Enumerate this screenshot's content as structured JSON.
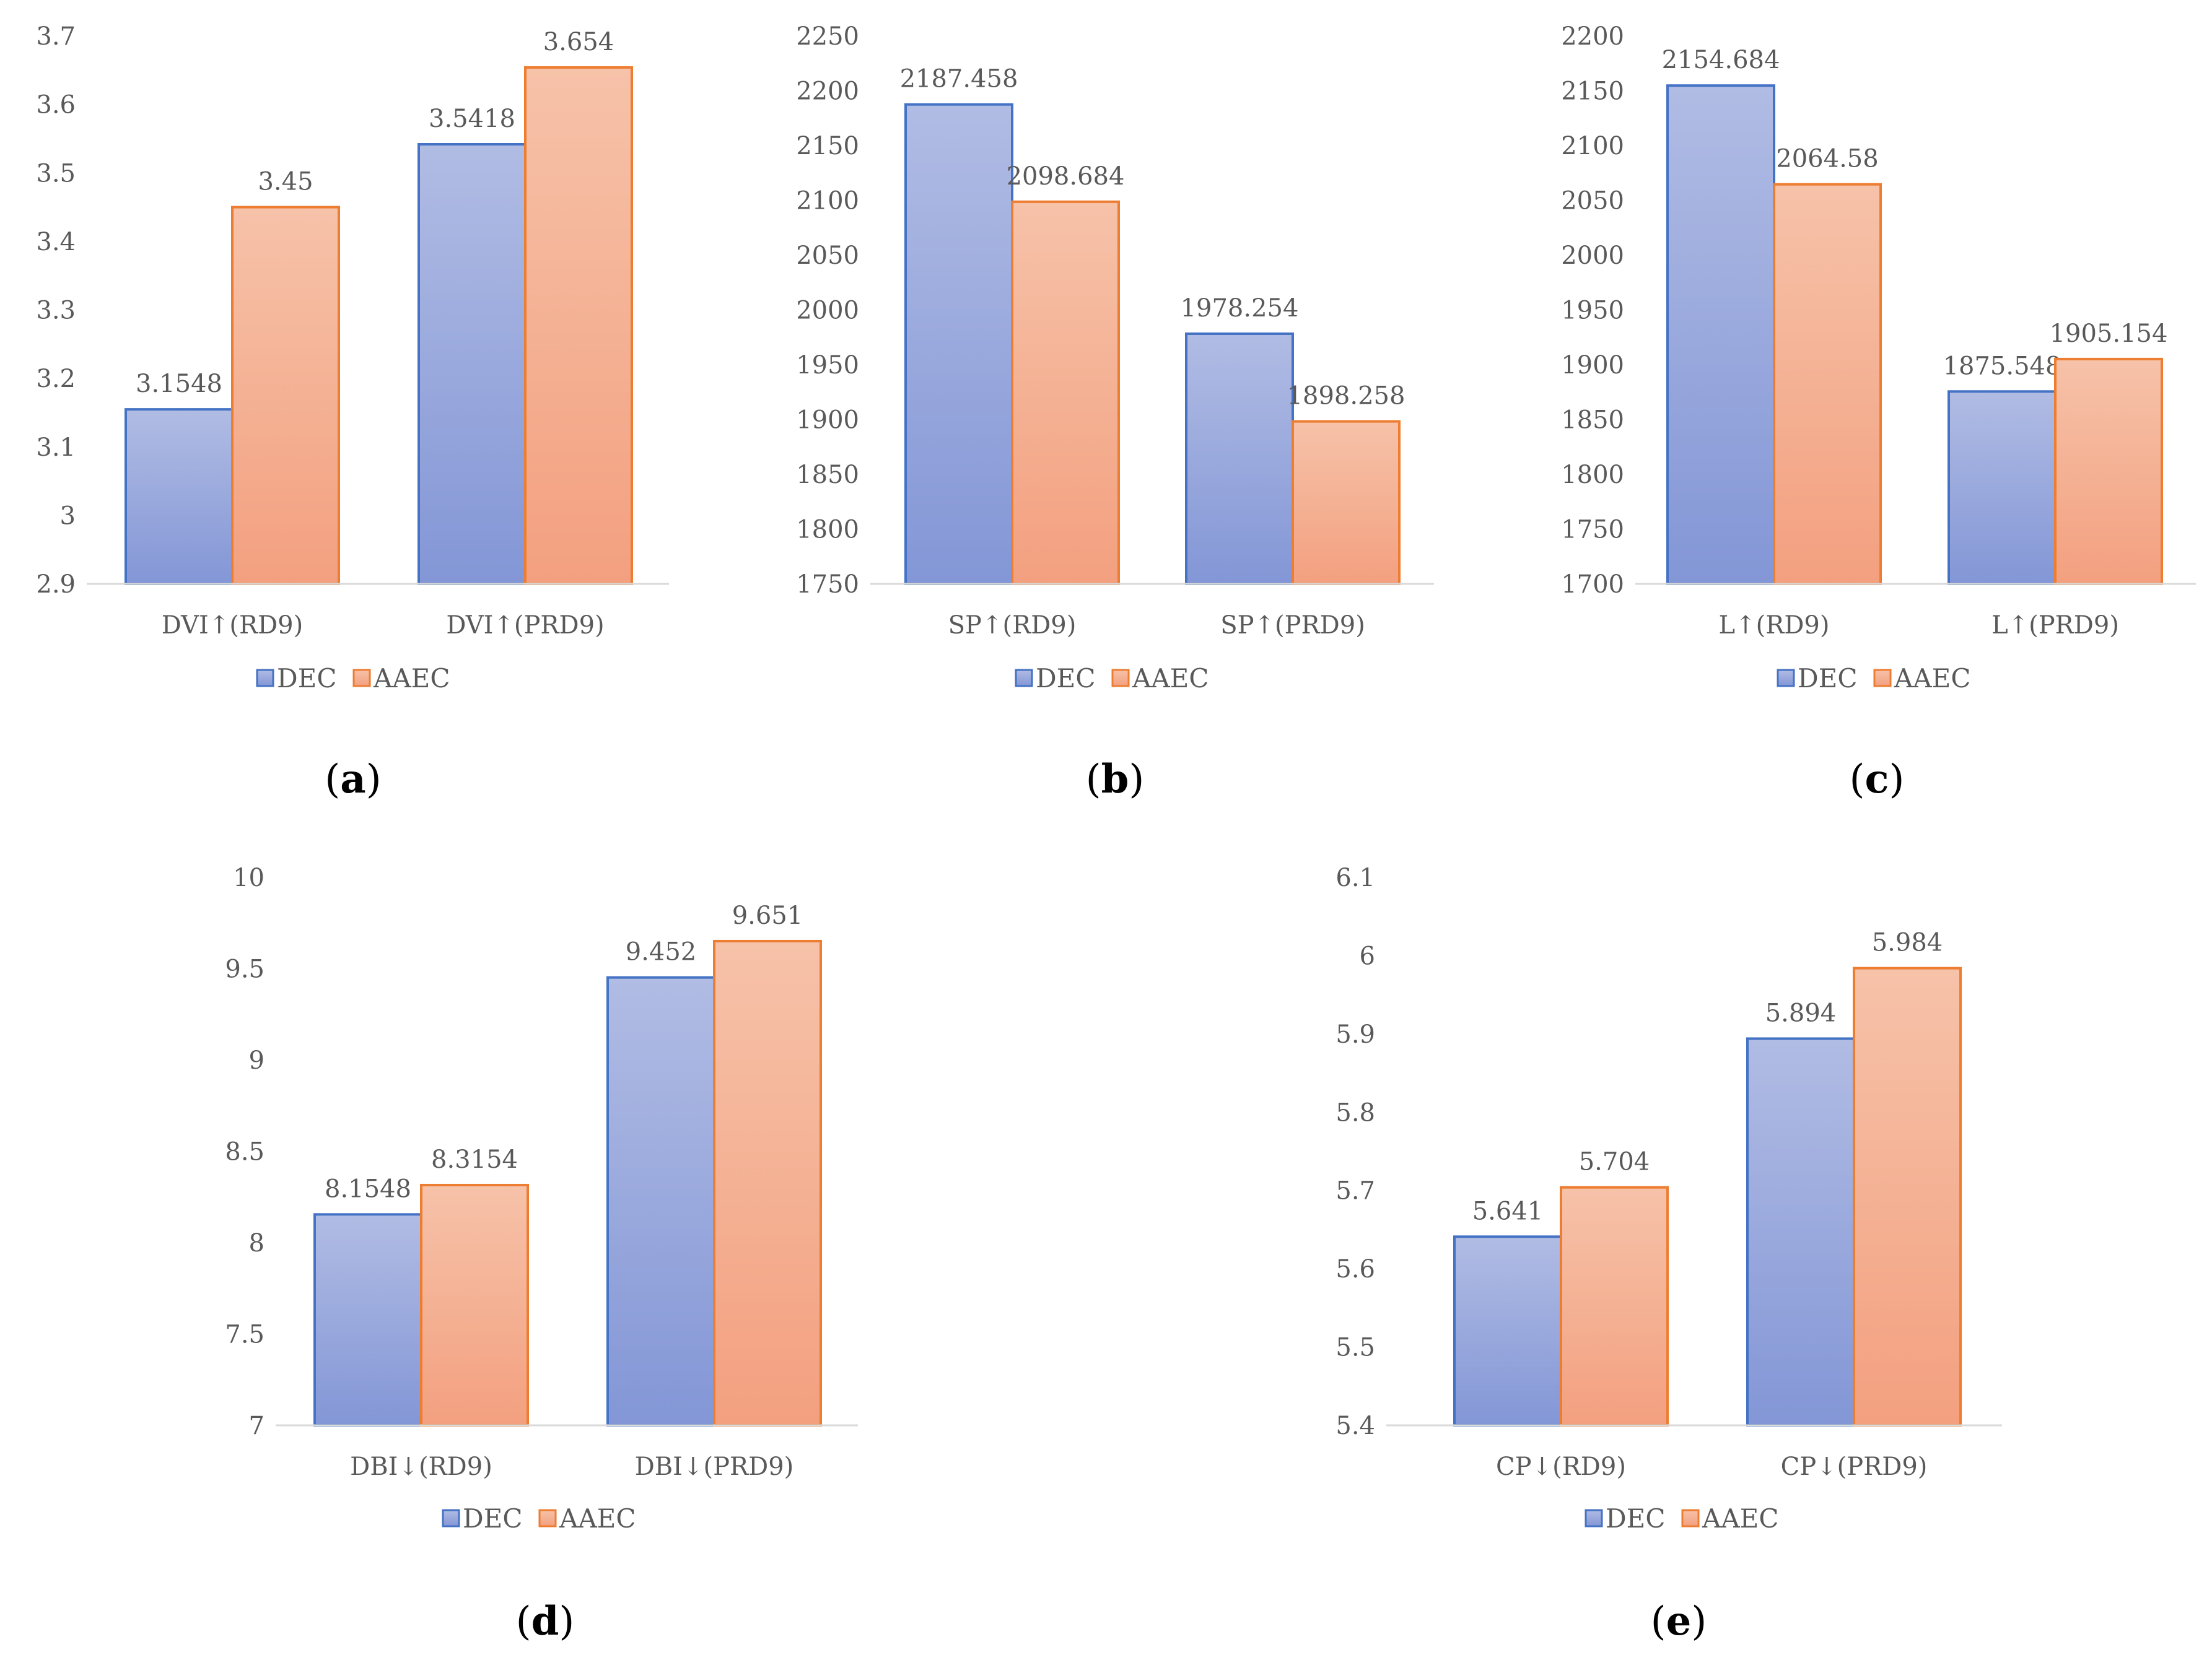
{
  "colors": {
    "dec_light": "#b1bce4",
    "dec_dark": "#8396d6",
    "dec_edge": "#4472c4",
    "aaec_light": "#f6c2a9",
    "aaec_dark": "#f3a07f",
    "aaec_edge": "#ed7d31"
  },
  "chart_data": [
    {
      "type": "bar",
      "panel": "a",
      "label_open": "(",
      "label_letter": "a",
      "label_close": ")",
      "categories": [
        "DVI↑(RD9)",
        "DVI↑(PRD9)"
      ],
      "series": [
        {
          "name": "DEC",
          "values": [
            3.1548,
            3.5418
          ],
          "labels": [
            "3.1548",
            "3.5418"
          ]
        },
        {
          "name": "AAEC",
          "values": [
            3.45,
            3.654
          ],
          "labels": [
            "3.45",
            "3.654"
          ]
        }
      ],
      "ylim": [
        2.9,
        3.7
      ],
      "yticks": [
        "2.9",
        "3",
        "3.1",
        "3.2",
        "3.3",
        "3.4",
        "3.5",
        "3.6",
        "3.7"
      ],
      "legend": [
        "DEC",
        "AAEC"
      ],
      "legend_position": "bottom"
    },
    {
      "type": "bar",
      "panel": "b",
      "label_open": "(",
      "label_letter": "b",
      "label_close": ")",
      "categories": [
        "SP↑(RD9)",
        "SP↑(PRD9)"
      ],
      "series": [
        {
          "name": "DEC",
          "values": [
            2187.458,
            1978.254
          ],
          "labels": [
            "2187.458",
            "1978.254"
          ]
        },
        {
          "name": "AAEC",
          "values": [
            2098.684,
            1898.258
          ],
          "labels": [
            "2098.684",
            "1898.258"
          ]
        }
      ],
      "ylim": [
        1750,
        2250
      ],
      "yticks": [
        "1750",
        "1800",
        "1850",
        "1900",
        "1950",
        "2000",
        "2050",
        "2100",
        "2150",
        "2200",
        "2250"
      ],
      "legend": [
        "DEC",
        "AAEC"
      ],
      "legend_position": "bottom"
    },
    {
      "type": "bar",
      "panel": "c",
      "label_open": "(",
      "label_letter": "c",
      "label_close": ")",
      "categories": [
        "L↑(RD9)",
        "L↑(PRD9)"
      ],
      "series": [
        {
          "name": "DEC",
          "values": [
            2154.684,
            1875.548
          ],
          "labels": [
            "2154.684",
            "1875.548"
          ]
        },
        {
          "name": "AAEC",
          "values": [
            2064.58,
            1905.154
          ],
          "labels": [
            "2064.58",
            "1905.154"
          ]
        }
      ],
      "ylim": [
        1700,
        2200
      ],
      "yticks": [
        "1700",
        "1750",
        "1800",
        "1850",
        "1900",
        "1950",
        "2000",
        "2050",
        "2100",
        "2150",
        "2200"
      ],
      "legend": [
        "DEC",
        "AAEC"
      ],
      "legend_position": "bottom"
    },
    {
      "type": "bar",
      "panel": "d",
      "label_open": "(",
      "label_letter": "d",
      "label_close": ")",
      "categories": [
        "DBI↓(RD9)",
        "DBI↓(PRD9)"
      ],
      "series": [
        {
          "name": "DEC",
          "values": [
            8.1548,
            9.452
          ],
          "labels": [
            "8.1548",
            "9.452"
          ]
        },
        {
          "name": "AAEC",
          "values": [
            8.3154,
            9.651
          ],
          "labels": [
            "8.3154",
            "9.651"
          ]
        }
      ],
      "ylim": [
        7,
        10
      ],
      "yticks": [
        "7",
        "7.5",
        "8",
        "8.5",
        "9",
        "9.5",
        "10"
      ],
      "legend": [
        "DEC",
        "AAEC"
      ],
      "legend_position": "bottom"
    },
    {
      "type": "bar",
      "panel": "e",
      "label_open": "(",
      "label_letter": "e",
      "label_close": ")",
      "categories": [
        "CP↓(RD9)",
        "CP↓(PRD9)"
      ],
      "series": [
        {
          "name": "DEC",
          "values": [
            5.641,
            5.894
          ],
          "labels": [
            "5.641",
            "5.894"
          ]
        },
        {
          "name": "AAEC",
          "values": [
            5.704,
            5.984
          ],
          "labels": [
            "5.704",
            "5.984"
          ]
        }
      ],
      "ylim": [
        5.4,
        6.1
      ],
      "yticks": [
        "5.4",
        "5.5",
        "5.6",
        "5.7",
        "5.8",
        "5.9",
        "6",
        "6.1"
      ],
      "legend": [
        "DEC",
        "AAEC"
      ],
      "legend_position": "bottom"
    }
  ]
}
